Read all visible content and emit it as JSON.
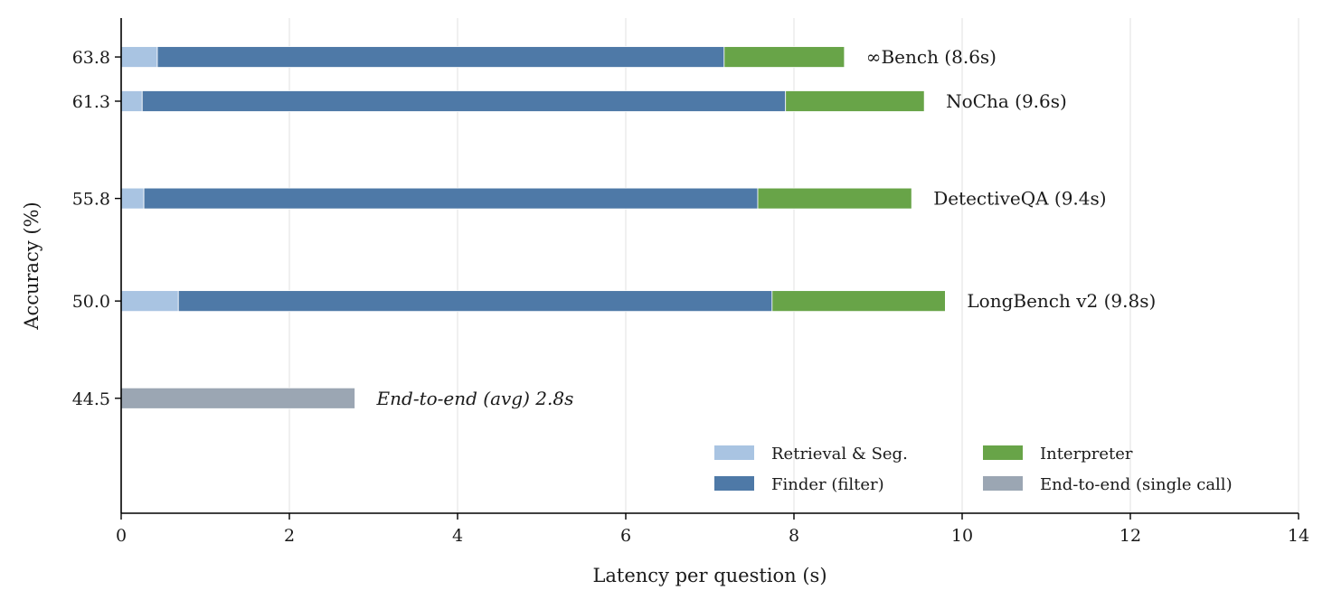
{
  "chart_data": {
    "type": "bar",
    "orientation": "horizontal",
    "stacked": true,
    "xlabel": "Latency per question (s)",
    "ylabel": "Accuracy (%)",
    "xlim": [
      0,
      14
    ],
    "xticks": [
      0,
      2,
      4,
      6,
      8,
      10,
      12,
      14
    ],
    "ylim": [
      38,
      66
    ],
    "grid": "vertical",
    "legend_position": "bottom-right",
    "colors": {
      "retrieval": "#a9c4e2",
      "finder": "#4e79a7",
      "interpreter": "#68a448",
      "end_to_end": "#9ba6b3"
    },
    "series": [
      {
        "key": "retrieval",
        "name": "Retrieval & Seg."
      },
      {
        "key": "finder",
        "name": "Finder (filter)"
      },
      {
        "key": "interpreter",
        "name": "Interpreter"
      },
      {
        "key": "end_to_end",
        "name": "End-to-end (single call)"
      }
    ],
    "bars": [
      {
        "y": 63.8,
        "y_label": "63.8",
        "label": "∞Bench (8.6s)",
        "segments": {
          "retrieval": 0.43,
          "finder": 6.74,
          "interpreter": 1.43
        }
      },
      {
        "y": 61.3,
        "y_label": "61.3",
        "label": "NoCha (9.6s)",
        "segments": {
          "retrieval": 0.25,
          "finder": 7.65,
          "interpreter": 1.65
        }
      },
      {
        "y": 55.8,
        "y_label": "55.8",
        "label": "DetectiveQA (9.4s)",
        "segments": {
          "retrieval": 0.27,
          "finder": 7.3,
          "interpreter": 1.83
        }
      },
      {
        "y": 50.0,
        "y_label": "50.0",
        "label": "LongBench v2 (9.8s)",
        "segments": {
          "retrieval": 0.68,
          "finder": 7.06,
          "interpreter": 2.06
        }
      },
      {
        "y": 44.5,
        "y_label": "44.5",
        "label": "End-to-end (avg) 2.8s",
        "italic": true,
        "segments": {
          "end_to_end": 2.78
        }
      }
    ]
  }
}
